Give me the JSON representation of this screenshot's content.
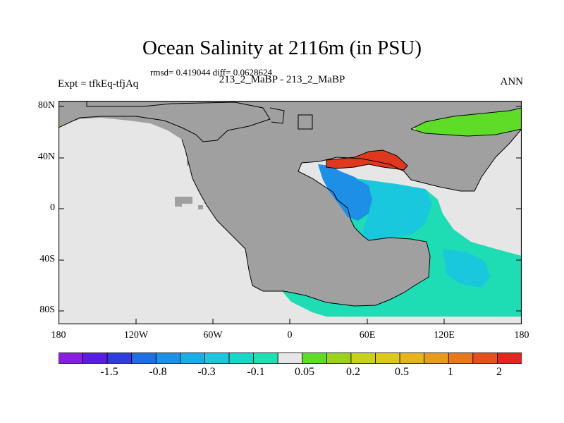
{
  "title": "Ocean Salinity at 2116m (in PSU)",
  "stats": "rmsd= 0.419044 diff= 0.0628624",
  "left_label": "Expt = tfkEq-tfjAq",
  "center_label": "213_2_MaBP - 213_2_MaBP",
  "right_label": "ANN",
  "lat_labels": [
    "80N",
    "40N",
    "0",
    "40S",
    "80S"
  ],
  "lon_labels": [
    "180",
    "120W",
    "60W",
    "0",
    "60E",
    "120E",
    "180"
  ],
  "colorbar": {
    "colors": [
      "#8a1ee0",
      "#5a1ee0",
      "#2e3ddc",
      "#1f6fe0",
      "#1e90e6",
      "#19aee6",
      "#1ec5dc",
      "#19d6c8",
      "#1ee0b0",
      "#e6e6e6",
      "#5fdc28",
      "#9ad21e",
      "#c8d21e",
      "#dcc81e",
      "#e6b41e",
      "#e69b1e",
      "#e6781e",
      "#e6501e",
      "#e0281e"
    ],
    "labels": [
      "-1.5",
      "-0.8",
      "-0.3",
      "-0.1",
      "0.05",
      "0.2",
      "0.5",
      "1",
      "2"
    ]
  },
  "map_colors": {
    "land": "#a0a0a0",
    "neutral_ocean": "#e6e6e6",
    "southern_ocean": "#1edcb4",
    "arctic": "#5fdc28",
    "med": "#e0381e",
    "blue_core": "#1e8fe6",
    "cyan": "#19c8dc"
  }
}
